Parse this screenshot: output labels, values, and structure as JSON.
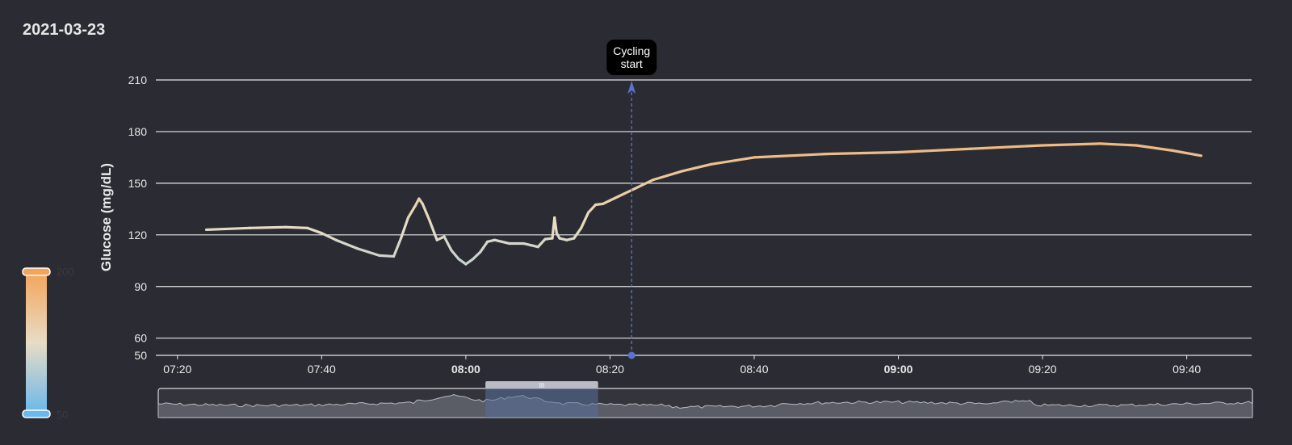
{
  "date": "2021-03-23",
  "chart_data": {
    "type": "line",
    "title": "",
    "ylabel": "Glucose (mg/dL)",
    "xlabel": "",
    "ylim": [
      50,
      210
    ],
    "y_ticks": [
      50,
      60,
      90,
      120,
      150,
      180,
      210
    ],
    "x_range": [
      "07:17",
      "09:49"
    ],
    "x_ticks": [
      {
        "label": "07:20",
        "bold": false
      },
      {
        "label": "07:40",
        "bold": false
      },
      {
        "label": "08:00",
        "bold": true
      },
      {
        "label": "08:20",
        "bold": false
      },
      {
        "label": "08:40",
        "bold": false
      },
      {
        "label": "09:00",
        "bold": true
      },
      {
        "label": "09:20",
        "bold": false
      },
      {
        "label": "09:40",
        "bold": false
      }
    ],
    "grid": true,
    "color_scale": {
      "min": 50,
      "max": 200,
      "low_color": "#6ab8ec",
      "mid_color": "#e8dcc4",
      "high_color": "#f3a45a",
      "min_label": "50",
      "max_label": "200"
    },
    "series": [
      {
        "points": [
          [
            "07:24",
            123
          ],
          [
            "07:30",
            124
          ],
          [
            "07:35",
            124.5
          ],
          [
            "07:38",
            124
          ],
          [
            "07:40",
            121
          ],
          [
            "07:42",
            117
          ],
          [
            "07:45",
            112
          ],
          [
            "07:48",
            108
          ],
          [
            "07:50",
            107.5
          ],
          [
            "07:51",
            118
          ],
          [
            "07:52",
            130
          ],
          [
            "07:53",
            137
          ],
          [
            "07:53.5",
            141
          ],
          [
            "07:54",
            138
          ],
          [
            "07:55",
            128
          ],
          [
            "07:56",
            117
          ],
          [
            "07:57",
            119
          ],
          [
            "07:58",
            111
          ],
          [
            "07:59",
            106
          ],
          [
            "08:00",
            103
          ],
          [
            "08:01",
            106
          ],
          [
            "08:02",
            110
          ],
          [
            "08:03",
            116
          ],
          [
            "08:04",
            117
          ],
          [
            "08:05",
            116
          ],
          [
            "08:06",
            115
          ],
          [
            "08:08",
            115
          ],
          [
            "08:09",
            114
          ],
          [
            "08:10",
            113
          ],
          [
            "08:11",
            117.5
          ],
          [
            "08:12",
            118
          ],
          [
            "08:12.3",
            130
          ],
          [
            "08:12.6",
            121
          ],
          [
            "08:13",
            118
          ],
          [
            "08:14",
            117
          ],
          [
            "08:15",
            118
          ],
          [
            "08:16",
            124
          ],
          [
            "08:17",
            133
          ],
          [
            "08:18",
            137.5
          ],
          [
            "08:19",
            138
          ],
          [
            "08:20",
            140
          ],
          [
            "08:22",
            144
          ],
          [
            "08:24",
            148
          ],
          [
            "08:26",
            152
          ],
          [
            "08:30",
            157
          ],
          [
            "08:34",
            161
          ],
          [
            "08:40",
            165
          ],
          [
            "08:50",
            167
          ],
          [
            "09:00",
            168
          ],
          [
            "09:10",
            170
          ],
          [
            "09:20",
            172
          ],
          [
            "09:28",
            173
          ],
          [
            "09:33",
            172
          ],
          [
            "09:38",
            169
          ],
          [
            "09:42",
            166
          ]
        ]
      }
    ],
    "annotations": [
      {
        "time": "08:23",
        "label_line1": "Cycling",
        "label_line2": "start"
      }
    ],
    "navigator": {
      "window_start": "07:53",
      "window_end": "08:09"
    }
  }
}
